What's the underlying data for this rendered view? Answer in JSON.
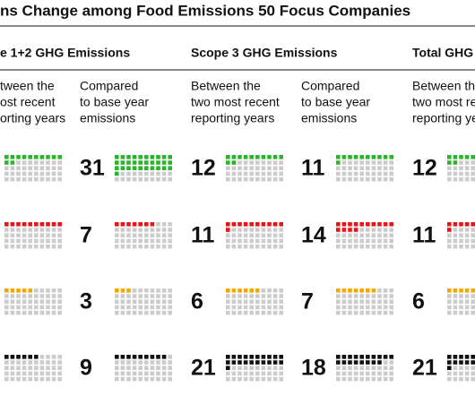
{
  "title": "ns Change among Food Emissions 50 Focus Companies",
  "colors": [
    "#2bb52b",
    "#e8141c",
    "#f5a800",
    "#111111"
  ],
  "empty_color": "#cccccc",
  "groups": [
    {
      "heading": "e 1+2 GHG Emissions",
      "subcolumns": [
        {
          "lines": [
            "tween the",
            "ost recent",
            "orting years"
          ],
          "numbers_printed": false,
          "values": [
            12,
            10,
            5,
            6
          ]
        },
        {
          "lines": [
            "Compared",
            "to base year",
            "emissions"
          ],
          "numbers_printed": true,
          "values": [
            31,
            7,
            3,
            9
          ]
        }
      ]
    },
    {
      "heading": "Scope 3 GHG Emissions",
      "subcolumns": [
        {
          "lines": [
            "Between the",
            "two most recent",
            "reporting years"
          ],
          "numbers_printed": true,
          "values": [
            12,
            11,
            6,
            21
          ]
        },
        {
          "lines": [
            "Compared",
            "to base year",
            "emissions"
          ],
          "numbers_printed": true,
          "values": [
            11,
            14,
            7,
            18
          ]
        }
      ]
    },
    {
      "heading": "Total GHG",
      "subcolumns": [
        {
          "lines": [
            "Between the",
            "two most recent",
            "reporting years"
          ],
          "numbers_printed": true,
          "values": [
            12,
            11,
            6,
            21
          ]
        }
      ]
    }
  ]
}
